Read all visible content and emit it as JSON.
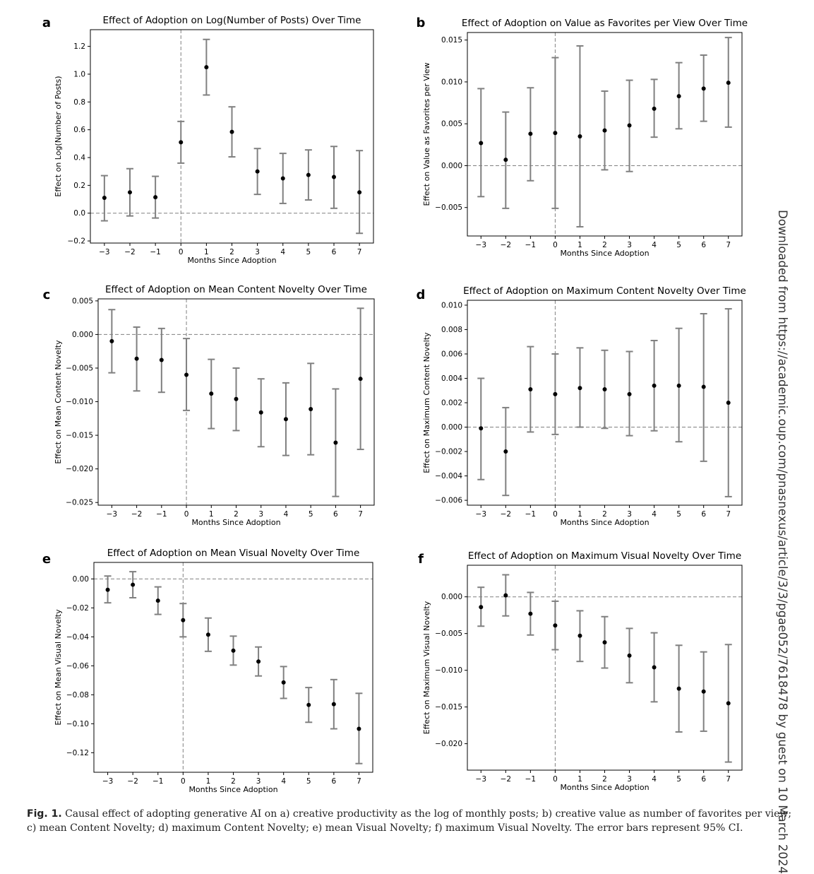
{
  "side_note": "Downloaded from https://academic.oup.com/pnasnexus/article/3/3/pgae052/7618478 by guest on 10 March 2024",
  "caption": {
    "label": "Fig. 1.",
    "text": "Causal effect of adopting generative AI on a) creative productivity as the log of monthly posts; b) creative value as number of favorites per view; c) mean Content Novelty; d) maximum Content Novelty; e) mean Visual Novelty; f) maximum Visual Novelty. The error bars represent 95% CI."
  },
  "chart_data": [
    {
      "panel": "a",
      "type": "scatter",
      "title": "Effect of Adoption on Log(Number of Posts) Over Time",
      "xlabel": "Months Since Adoption",
      "ylabel": "Effect on Log(Number of Posts)",
      "x": [
        -3,
        -2,
        -1,
        0,
        1,
        2,
        3,
        4,
        5,
        6,
        7
      ],
      "y": [
        0.11,
        0.15,
        0.115,
        0.51,
        1.05,
        0.585,
        0.3,
        0.25,
        0.275,
        0.26,
        0.15
      ],
      "ci_low": [
        -0.055,
        -0.02,
        -0.035,
        0.36,
        0.85,
        0.405,
        0.135,
        0.07,
        0.095,
        0.035,
        -0.145
      ],
      "ci_high": [
        0.27,
        0.32,
        0.265,
        0.66,
        1.25,
        0.765,
        0.465,
        0.43,
        0.455,
        0.48,
        0.45
      ],
      "xticks": [
        -3,
        -2,
        -1,
        0,
        1,
        2,
        3,
        4,
        5,
        6,
        7
      ],
      "yticks": [
        -0.2,
        0.0,
        0.2,
        0.4,
        0.6,
        0.8,
        1.0,
        1.2
      ],
      "ytick_labels": [
        "−0.2",
        "0.0",
        "0.2",
        "0.4",
        "0.6",
        "0.8",
        "1.0",
        "1.2"
      ],
      "xlim": [
        -3.55,
        7.55
      ],
      "ylim": [
        -0.215,
        1.32
      ]
    },
    {
      "panel": "b",
      "type": "scatter",
      "title": "Effect of Adoption on Value as Favorites per View Over Time",
      "xlabel": "Months Since Adoption",
      "ylabel": "Effect on Value as Favorites per View",
      "x": [
        -3,
        -2,
        -1,
        0,
        1,
        2,
        3,
        4,
        5,
        6,
        7
      ],
      "y": [
        0.0027,
        0.0007,
        0.0038,
        0.0039,
        0.0035,
        0.0042,
        0.0048,
        0.0068,
        0.0083,
        0.0092,
        0.0099
      ],
      "ci_low": [
        -0.0037,
        -0.0051,
        -0.0018,
        -0.0051,
        -0.0073,
        -0.0005,
        -0.0007,
        0.0034,
        0.0044,
        0.0053,
        0.0046
      ],
      "ci_high": [
        0.0092,
        0.0064,
        0.0093,
        0.0129,
        0.0143,
        0.0089,
        0.0102,
        0.0103,
        0.0123,
        0.0132,
        0.0153
      ],
      "xticks": [
        -3,
        -2,
        -1,
        0,
        1,
        2,
        3,
        4,
        5,
        6,
        7
      ],
      "yticks": [
        -0.005,
        0.0,
        0.005,
        0.01,
        0.015
      ],
      "ytick_labels": [
        "−0.005",
        "0.000",
        "0.005",
        "0.010",
        "0.015"
      ],
      "xlim": [
        -3.55,
        7.55
      ],
      "ylim": [
        -0.0084,
        0.0159
      ]
    },
    {
      "panel": "c",
      "type": "scatter",
      "title": "Effect of Adoption on Mean Content Novelty Over Time",
      "xlabel": "Months Since Adoption",
      "ylabel": "Effect on Mean Content Novelty",
      "x": [
        -3,
        -2,
        -1,
        0,
        1,
        2,
        3,
        4,
        5,
        6,
        7
      ],
      "y": [
        -0.001,
        -0.0036,
        -0.0038,
        -0.006,
        -0.0088,
        -0.0096,
        -0.0116,
        -0.0126,
        -0.0111,
        -0.0161,
        -0.0066
      ],
      "ci_low": [
        -0.0057,
        -0.0084,
        -0.0086,
        -0.0113,
        -0.014,
        -0.0143,
        -0.0167,
        -0.018,
        -0.0179,
        -0.0241,
        -0.0171
      ],
      "ci_high": [
        0.0037,
        0.0011,
        0.0009,
        -0.0006,
        -0.0037,
        -0.005,
        -0.0066,
        -0.0072,
        -0.0043,
        -0.0081,
        0.0039
      ],
      "xticks": [
        -3,
        -2,
        -1,
        0,
        1,
        2,
        3,
        4,
        5,
        6,
        7
      ],
      "yticks": [
        -0.025,
        -0.02,
        -0.015,
        -0.01,
        -0.005,
        0.0,
        0.005
      ],
      "ytick_labels": [
        "−0.025",
        "−0.020",
        "−0.015",
        "−0.010",
        "−0.005",
        "0.000",
        "0.005"
      ],
      "xlim": [
        -3.55,
        7.55
      ],
      "ylim": [
        -0.0254,
        0.0053
      ]
    },
    {
      "panel": "d",
      "type": "scatter",
      "title": "Effect of Adoption on Maximum Content Novelty Over Time",
      "xlabel": "Months Since Adoption",
      "ylabel": "Effect on Maximum Content Novelty",
      "x": [
        -3,
        -2,
        -1,
        0,
        1,
        2,
        3,
        4,
        5,
        6,
        7
      ],
      "y": [
        -0.0001,
        -0.002,
        0.0031,
        0.0027,
        0.0032,
        0.0031,
        0.0027,
        0.0034,
        0.0034,
        0.0033,
        0.002
      ],
      "ci_low": [
        -0.0043,
        -0.0056,
        -0.0004,
        -0.0006,
        0.0,
        -0.0001,
        -0.0007,
        -0.0003,
        -0.0012,
        -0.0028,
        -0.0057
      ],
      "ci_high": [
        0.004,
        0.0016,
        0.0066,
        0.006,
        0.0065,
        0.0063,
        0.0062,
        0.0071,
        0.0081,
        0.0093,
        0.0097
      ],
      "xticks": [
        -3,
        -2,
        -1,
        0,
        1,
        2,
        3,
        4,
        5,
        6,
        7
      ],
      "yticks": [
        -0.006,
        -0.004,
        -0.002,
        0.0,
        0.002,
        0.004,
        0.006,
        0.008,
        0.01
      ],
      "ytick_labels": [
        "−0.006",
        "−0.004",
        "−0.002",
        "0.000",
        "0.002",
        "0.004",
        "0.006",
        "0.008",
        "0.010"
      ],
      "xlim": [
        -3.55,
        7.55
      ],
      "ylim": [
        -0.0064,
        0.0104
      ]
    },
    {
      "panel": "e",
      "type": "scatter",
      "title": "Effect of Adoption on Mean Visual Novelty Over Time",
      "xlabel": "Months Since Adoption",
      "ylabel": "Effect on Mean Visual Novelty",
      "x": [
        -3,
        -2,
        -1,
        0,
        1,
        2,
        3,
        4,
        5,
        6,
        7
      ],
      "y": [
        -0.0075,
        -0.004,
        -0.015,
        -0.0285,
        -0.0385,
        -0.0495,
        -0.057,
        -0.0715,
        -0.087,
        -0.0865,
        -0.1035
      ],
      "ci_low": [
        -0.0165,
        -0.013,
        -0.0245,
        -0.04,
        -0.05,
        -0.0595,
        -0.067,
        -0.0825,
        -0.099,
        -0.1035,
        -0.1275
      ],
      "ci_high": [
        0.002,
        0.005,
        -0.0055,
        -0.017,
        -0.027,
        -0.0395,
        -0.047,
        -0.0605,
        -0.075,
        -0.0695,
        -0.079
      ],
      "xticks": [
        -3,
        -2,
        -1,
        0,
        1,
        2,
        3,
        4,
        5,
        6,
        7
      ],
      "yticks": [
        -0.12,
        -0.1,
        -0.08,
        -0.06,
        -0.04,
        -0.02,
        0.0
      ],
      "ytick_labels": [
        "−0.12",
        "−0.10",
        "−0.08",
        "−0.06",
        "−0.04",
        "−0.02",
        "0.00"
      ],
      "xlim": [
        -3.55,
        7.55
      ],
      "ylim": [
        -0.1335,
        0.0114
      ]
    },
    {
      "panel": "f",
      "type": "scatter",
      "title": "Effect of Adoption on Maximum Visual Novelty Over Time",
      "xlabel": "Months Since Adoption",
      "ylabel": "Effect on Maximum Visual Novelty",
      "x": [
        -3,
        -2,
        -1,
        0,
        1,
        2,
        3,
        4,
        5,
        6,
        7
      ],
      "y": [
        -0.0014,
        0.0002,
        -0.0023,
        -0.0039,
        -0.0053,
        -0.0062,
        -0.008,
        -0.0096,
        -0.0125,
        -0.0129,
        -0.0145
      ],
      "ci_low": [
        -0.004,
        -0.0026,
        -0.0052,
        -0.0072,
        -0.0088,
        -0.0097,
        -0.0117,
        -0.0143,
        -0.0184,
        -0.0183,
        -0.0225
      ],
      "ci_high": [
        0.0013,
        0.003,
        0.0006,
        -0.0006,
        -0.0019,
        -0.0027,
        -0.0043,
        -0.0049,
        -0.0066,
        -0.0075,
        -0.0065
      ],
      "xticks": [
        -3,
        -2,
        -1,
        0,
        1,
        2,
        3,
        4,
        5,
        6,
        7
      ],
      "yticks": [
        -0.02,
        -0.015,
        -0.01,
        -0.005,
        0.0
      ],
      "ytick_labels": [
        "−0.020",
        "−0.015",
        "−0.010",
        "−0.005",
        "0.000"
      ],
      "xlim": [
        -3.55,
        7.55
      ],
      "ylim": [
        -0.0236,
        0.0043
      ]
    }
  ],
  "colors": {
    "errorbar": "#808080",
    "point": "#000000",
    "refline": "#808080"
  }
}
